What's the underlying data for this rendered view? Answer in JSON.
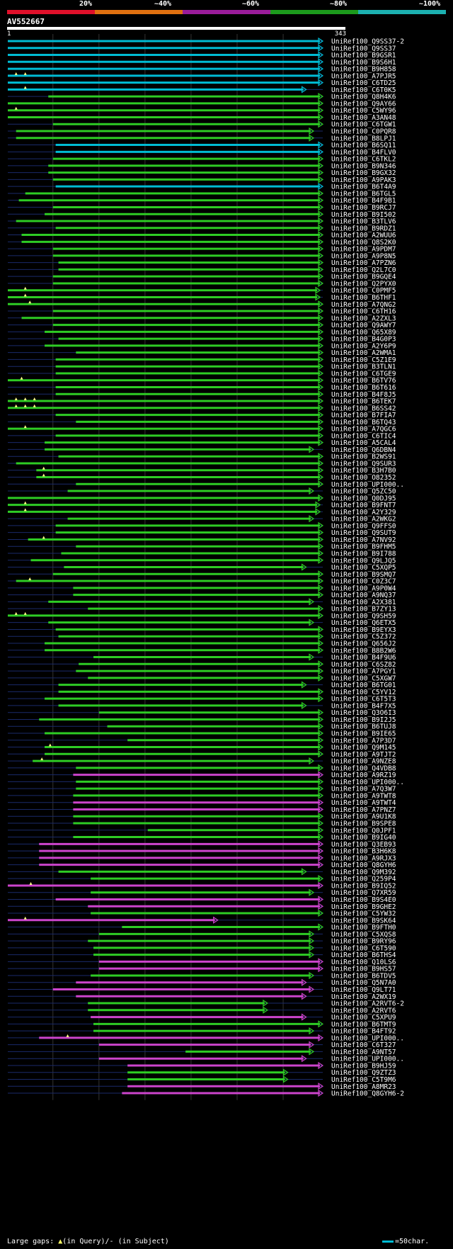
{
  "scale": {
    "labels": [
      "20%",
      "~40%",
      "~60%",
      "~80%",
      "~100%"
    ],
    "colors": [
      "#e0102a",
      "#e07010",
      "#9a1c9a",
      "#1c9a1c",
      "#1cb0b0"
    ]
  },
  "query": {
    "id": "AV552667",
    "length": 343,
    "start_label": "1",
    "end_label": "343"
  },
  "colors": {
    "cyan": "#00bcd4",
    "green": "#2ecc24",
    "magenta": "#cc44cc",
    "faint": "#1a2a6a",
    "gap": "#ffff88",
    "grid": "#333333"
  },
  "footer": {
    "large_gaps": "Large gaps:",
    "in_query": "(in Query)/",
    "in_subject": "- (in Subject)",
    "legend": "=50char."
  },
  "hits": [
    {
      "id": "UniRef100_Q9SS37-2",
      "start": 1,
      "end": 343,
      "color": "cyan",
      "gaps": []
    },
    {
      "id": "UniRef100_Q9SS37",
      "start": 1,
      "end": 343,
      "color": "cyan",
      "gaps": []
    },
    {
      "id": "UniRef100_B9GSR1",
      "start": 1,
      "end": 343,
      "color": "cyan",
      "gaps": []
    },
    {
      "id": "UniRef100_B9S6H1",
      "start": 1,
      "end": 343,
      "color": "cyan",
      "gaps": []
    },
    {
      "id": "UniRef100_B9H858",
      "start": 1,
      "end": 343,
      "color": "cyan",
      "gaps": []
    },
    {
      "id": "UniRef100_A7PJR5",
      "start": 1,
      "end": 343,
      "color": "cyan",
      "gaps": [
        10,
        20
      ]
    },
    {
      "id": "UniRef100_C6TD25",
      "start": 1,
      "end": 343,
      "color": "cyan",
      "gaps": []
    },
    {
      "id": "UniRef100_C6T0K5",
      "start": 1,
      "end": 325,
      "color": "cyan",
      "gaps": [
        20
      ]
    },
    {
      "id": "UniRef100_Q8H4K6",
      "start": 45,
      "end": 343,
      "color": "green",
      "gaps": []
    },
    {
      "id": "UniRef100_Q9AY66",
      "start": 1,
      "end": 343,
      "color": "green",
      "gaps": []
    },
    {
      "id": "UniRef100_C5WY96",
      "start": 1,
      "end": 343,
      "color": "green",
      "gaps": [
        10
      ]
    },
    {
      "id": "UniRef100_A3AN48",
      "start": 1,
      "end": 343,
      "color": "green",
      "gaps": []
    },
    {
      "id": "UniRef100_C6TGW1",
      "start": 50,
      "end": 343,
      "color": "green",
      "gaps": []
    },
    {
      "id": "UniRef100_C0PQR8",
      "start": 10,
      "end": 333,
      "color": "green",
      "gaps": []
    },
    {
      "id": "UniRef100_B8LPJ1",
      "start": 10,
      "end": 333,
      "color": "green",
      "gaps": []
    },
    {
      "id": "UniRef100_B6SQ11",
      "start": 53,
      "end": 343,
      "color": "cyan",
      "gaps": []
    },
    {
      "id": "UniRef100_B4FLV0",
      "start": 53,
      "end": 343,
      "color": "cyan",
      "gaps": []
    },
    {
      "id": "UniRef100_C6TKL2",
      "start": 50,
      "end": 343,
      "color": "green",
      "gaps": []
    },
    {
      "id": "UniRef100_B9N346",
      "start": 45,
      "end": 343,
      "color": "green",
      "gaps": []
    },
    {
      "id": "UniRef100_B9GX32",
      "start": 45,
      "end": 343,
      "color": "green",
      "gaps": []
    },
    {
      "id": "UniRef100_A9PAK3",
      "start": 50,
      "end": 343,
      "color": "green",
      "gaps": []
    },
    {
      "id": "UniRef100_B6T4A9",
      "start": 53,
      "end": 343,
      "color": "cyan",
      "gaps": []
    },
    {
      "id": "UniRef100_B6TGL5",
      "start": 20,
      "end": 343,
      "color": "green",
      "gaps": []
    },
    {
      "id": "UniRef100_B4F9B1",
      "start": 13,
      "end": 343,
      "color": "green",
      "gaps": []
    },
    {
      "id": "UniRef100_B9RCJ7",
      "start": 50,
      "end": 343,
      "color": "green",
      "gaps": []
    },
    {
      "id": "UniRef100_B9I502",
      "start": 41,
      "end": 343,
      "color": "green",
      "gaps": []
    },
    {
      "id": "UniRef100_B3TLV6",
      "start": 10,
      "end": 343,
      "color": "green",
      "gaps": []
    },
    {
      "id": "UniRef100_B9RDZ1",
      "start": 53,
      "end": 343,
      "color": "green",
      "gaps": []
    },
    {
      "id": "UniRef100_A2WUU6",
      "start": 16,
      "end": 343,
      "color": "green",
      "gaps": []
    },
    {
      "id": "UniRef100_Q8S2K0",
      "start": 16,
      "end": 343,
      "color": "green",
      "gaps": []
    },
    {
      "id": "UniRef100_A9PDM7",
      "start": 50,
      "end": 343,
      "color": "green",
      "gaps": []
    },
    {
      "id": "UniRef100_A9P8N5",
      "start": 50,
      "end": 343,
      "color": "green",
      "gaps": []
    },
    {
      "id": "UniRef100_A7PZN6",
      "start": 56,
      "end": 343,
      "color": "green",
      "gaps": []
    },
    {
      "id": "UniRef100_Q2L7C0",
      "start": 56,
      "end": 343,
      "color": "green",
      "gaps": []
    },
    {
      "id": "UniRef100_B9GQE4",
      "start": 50,
      "end": 343,
      "color": "green",
      "gaps": []
    },
    {
      "id": "UniRef100_Q2PYX0",
      "start": 50,
      "end": 343,
      "color": "green",
      "gaps": []
    },
    {
      "id": "UniRef100_C0PMF5",
      "start": 1,
      "end": 340,
      "color": "green",
      "gaps": [
        20
      ]
    },
    {
      "id": "UniRef100_B6THF1",
      "start": 1,
      "end": 340,
      "color": "green",
      "gaps": [
        20
      ]
    },
    {
      "id": "UniRef100_A7QNG2",
      "start": 1,
      "end": 343,
      "color": "green",
      "gaps": [
        25
      ]
    },
    {
      "id": "UniRef100_C6TH16",
      "start": 50,
      "end": 343,
      "color": "green",
      "gaps": []
    },
    {
      "id": "UniRef100_A2ZXL3",
      "start": 16,
      "end": 343,
      "color": "green",
      "gaps": []
    },
    {
      "id": "UniRef100_Q9AWY7",
      "start": 50,
      "end": 343,
      "color": "green",
      "gaps": []
    },
    {
      "id": "UniRef100_Q65X89",
      "start": 41,
      "end": 343,
      "color": "green",
      "gaps": []
    },
    {
      "id": "UniRef100_B4G0P3",
      "start": 56,
      "end": 343,
      "color": "green",
      "gaps": []
    },
    {
      "id": "UniRef100_A2Y6P9",
      "start": 41,
      "end": 343,
      "color": "green",
      "gaps": []
    },
    {
      "id": "UniRef100_A2WMA1",
      "start": 75,
      "end": 343,
      "color": "green",
      "gaps": []
    },
    {
      "id": "UniRef100_C5Z1E9",
      "start": 53,
      "end": 343,
      "color": "green",
      "gaps": []
    },
    {
      "id": "UniRef100_B3TLN1",
      "start": 53,
      "end": 343,
      "color": "green",
      "gaps": []
    },
    {
      "id": "UniRef100_C6TGE9",
      "start": 53,
      "end": 343,
      "color": "green",
      "gaps": []
    },
    {
      "id": "UniRef100_B6TV76",
      "start": 1,
      "end": 343,
      "color": "green",
      "gaps": [
        16
      ]
    },
    {
      "id": "UniRef100_B6T616",
      "start": 53,
      "end": 343,
      "color": "green",
      "gaps": []
    },
    {
      "id": "UniRef100_B4F8J5",
      "start": 53,
      "end": 343,
      "color": "green",
      "gaps": []
    },
    {
      "id": "UniRef100_B6TEK7",
      "start": 1,
      "end": 343,
      "color": "green",
      "gaps": [
        10,
        20,
        30
      ]
    },
    {
      "id": "UniRef100_B6SS42",
      "start": 1,
      "end": 343,
      "color": "green",
      "gaps": [
        10,
        20,
        30
      ]
    },
    {
      "id": "UniRef100_B7FIA7",
      "start": 53,
      "end": 343,
      "color": "green",
      "gaps": []
    },
    {
      "id": "UniRef100_B6TQ43",
      "start": 75,
      "end": 343,
      "color": "green",
      "gaps": []
    },
    {
      "id": "UniRef100_A7QGC6",
      "start": 1,
      "end": 343,
      "color": "green",
      "gaps": [
        20
      ]
    },
    {
      "id": "UniRef100_C6TIC4",
      "start": 53,
      "end": 343,
      "color": "green",
      "gaps": []
    },
    {
      "id": "UniRef100_A5CAL4",
      "start": 41,
      "end": 343,
      "color": "green",
      "gaps": []
    },
    {
      "id": "UniRef100_Q6DBN4",
      "start": 41,
      "end": 333,
      "color": "green",
      "gaps": []
    },
    {
      "id": "UniRef100_B2WS91",
      "start": 56,
      "end": 343,
      "color": "green",
      "gaps": []
    },
    {
      "id": "UniRef100_Q9SUR3",
      "start": 10,
      "end": 343,
      "color": "green",
      "gaps": []
    },
    {
      "id": "UniRef100_B3H7B0",
      "start": 32,
      "end": 343,
      "color": "green",
      "gaps": [
        40
      ]
    },
    {
      "id": "UniRef100_O82352",
      "start": 32,
      "end": 343,
      "color": "green",
      "gaps": [
        40
      ]
    },
    {
      "id": "UniRef100_UPI000..",
      "start": 75,
      "end": 343,
      "color": "green",
      "gaps": []
    },
    {
      "id": "UniRef100_Q5ZC50",
      "start": 66,
      "end": 333,
      "color": "green",
      "gaps": []
    },
    {
      "id": "UniRef100_Q0DJ95",
      "start": 1,
      "end": 343,
      "color": "green",
      "gaps": []
    },
    {
      "id": "UniRef100_B9FNT7",
      "start": 1,
      "end": 340,
      "color": "green",
      "gaps": [
        20
      ]
    },
    {
      "id": "UniRef100_A2Y329",
      "start": 1,
      "end": 340,
      "color": "green",
      "gaps": [
        20
      ]
    },
    {
      "id": "UniRef100_A2WKG2",
      "start": 66,
      "end": 333,
      "color": "green",
      "gaps": []
    },
    {
      "id": "UniRef100_Q9FFS0",
      "start": 53,
      "end": 343,
      "color": "green",
      "gaps": []
    },
    {
      "id": "UniRef100_Q9SUT9",
      "start": 53,
      "end": 343,
      "color": "green",
      "gaps": []
    },
    {
      "id": "UniRef100_A7NV92",
      "start": 23,
      "end": 343,
      "color": "green",
      "gaps": [
        40
      ]
    },
    {
      "id": "UniRef100_B9FHM5",
      "start": 75,
      "end": 343,
      "color": "green",
      "gaps": []
    },
    {
      "id": "UniRef100_B9I788",
      "start": 59,
      "end": 343,
      "color": "green",
      "gaps": []
    },
    {
      "id": "UniRef100_Q9LJQ5",
      "start": 26,
      "end": 343,
      "color": "green",
      "gaps": []
    },
    {
      "id": "UniRef100_C5XQP5",
      "start": 62,
      "end": 325,
      "color": "green",
      "gaps": []
    },
    {
      "id": "UniRef100_B9SMQ7",
      "start": 50,
      "end": 343,
      "color": "green",
      "gaps": []
    },
    {
      "id": "UniRef100_C0Z3C7",
      "start": 10,
      "end": 343,
      "color": "green",
      "gaps": [
        25
      ]
    },
    {
      "id": "UniRef100_A9P0W4",
      "start": 72,
      "end": 343,
      "color": "green",
      "gaps": []
    },
    {
      "id": "UniRef100_A9NQ37",
      "start": 72,
      "end": 343,
      "color": "green",
      "gaps": []
    },
    {
      "id": "UniRef100_A2X381",
      "start": 45,
      "end": 333,
      "color": "green",
      "gaps": []
    },
    {
      "id": "UniRef100_B7ZY13",
      "start": 88,
      "end": 343,
      "color": "green",
      "gaps": []
    },
    {
      "id": "UniRef100_Q9SH59",
      "start": 1,
      "end": 343,
      "color": "green",
      "gaps": [
        10,
        20
      ]
    },
    {
      "id": "UniRef100_Q6ETX5",
      "start": 45,
      "end": 333,
      "color": "green",
      "gaps": []
    },
    {
      "id": "UniRef100_B9EYX3",
      "start": 53,
      "end": 343,
      "color": "green",
      "gaps": []
    },
    {
      "id": "UniRef100_C5Z372",
      "start": 56,
      "end": 343,
      "color": "green",
      "gaps": []
    },
    {
      "id": "UniRef100_Q656J2",
      "start": 41,
      "end": 343,
      "color": "green",
      "gaps": []
    },
    {
      "id": "UniRef100_B8B2W6",
      "start": 41,
      "end": 343,
      "color": "green",
      "gaps": []
    },
    {
      "id": "UniRef100_B4F9U6",
      "start": 94,
      "end": 333,
      "color": "green",
      "gaps": []
    },
    {
      "id": "UniRef100_C6SZ82",
      "start": 78,
      "end": 343,
      "color": "green",
      "gaps": []
    },
    {
      "id": "UniRef100_A7PGY1",
      "start": 75,
      "end": 343,
      "color": "green",
      "gaps": []
    },
    {
      "id": "UniRef100_C5XGW7",
      "start": 88,
      "end": 343,
      "color": "green",
      "gaps": []
    },
    {
      "id": "UniRef100_B6TG01",
      "start": 56,
      "end": 325,
      "color": "green",
      "gaps": []
    },
    {
      "id": "UniRef100_C5YV12",
      "start": 56,
      "end": 343,
      "color": "green",
      "gaps": []
    },
    {
      "id": "UniRef100_C6T5T3",
      "start": 41,
      "end": 343,
      "color": "green",
      "gaps": []
    },
    {
      "id": "UniRef100_B4F7X5",
      "start": 56,
      "end": 325,
      "color": "green",
      "gaps": []
    },
    {
      "id": "UniRef100_Q3O6I3",
      "start": 100,
      "end": 343,
      "color": "green",
      "gaps": []
    },
    {
      "id": "UniRef100_B9I2J5",
      "start": 35,
      "end": 343,
      "color": "green",
      "gaps": []
    },
    {
      "id": "UniRef100_B6TUJ8",
      "start": 109,
      "end": 343,
      "color": "green",
      "gaps": []
    },
    {
      "id": "UniRef100_B9IE65",
      "start": 41,
      "end": 343,
      "color": "green",
      "gaps": []
    },
    {
      "id": "UniRef100_A7P3D7",
      "start": 131,
      "end": 343,
      "color": "green",
      "gaps": []
    },
    {
      "id": "UniRef100_Q9M145",
      "start": 41,
      "end": 343,
      "color": "green",
      "gaps": [
        47
      ]
    },
    {
      "id": "UniRef100_A9TJT2",
      "start": 41,
      "end": 343,
      "color": "green",
      "gaps": []
    },
    {
      "id": "UniRef100_A9NZE8",
      "start": 28,
      "end": 333,
      "color": "green",
      "gaps": [
        38
      ]
    },
    {
      "id": "UniRef100_Q4VDB8",
      "start": 75,
      "end": 343,
      "color": "green",
      "gaps": []
    },
    {
      "id": "UniRef100_A9RZ19",
      "start": 72,
      "end": 343,
      "color": "magenta",
      "gaps": []
    },
    {
      "id": "UniRef100_UPI000..",
      "start": 75,
      "end": 343,
      "color": "green",
      "gaps": []
    },
    {
      "id": "UniRef100_A7Q3W7",
      "start": 75,
      "end": 343,
      "color": "green",
      "gaps": []
    },
    {
      "id": "UniRef100_A9TWT8",
      "start": 72,
      "end": 343,
      "color": "green",
      "gaps": []
    },
    {
      "id": "UniRef100_A9TWT4",
      "start": 72,
      "end": 343,
      "color": "magenta",
      "gaps": []
    },
    {
      "id": "UniRef100_A7PNZ7",
      "start": 72,
      "end": 343,
      "color": "magenta",
      "gaps": []
    },
    {
      "id": "UniRef100_A9U1K8",
      "start": 72,
      "end": 343,
      "color": "green",
      "gaps": []
    },
    {
      "id": "UniRef100_B9SPE8",
      "start": 72,
      "end": 343,
      "color": "green",
      "gaps": []
    },
    {
      "id": "UniRef100_Q0JPF1",
      "start": 153,
      "end": 343,
      "color": "green",
      "gaps": []
    },
    {
      "id": "UniRef100_B9IG40",
      "start": 72,
      "end": 343,
      "color": "green",
      "gaps": []
    },
    {
      "id": "UniRef100_Q3EB93",
      "start": 35,
      "end": 343,
      "color": "magenta",
      "gaps": []
    },
    {
      "id": "UniRef100_B3H6K8",
      "start": 35,
      "end": 343,
      "color": "magenta",
      "gaps": []
    },
    {
      "id": "UniRef100_A9RJX3",
      "start": 35,
      "end": 343,
      "color": "magenta",
      "gaps": []
    },
    {
      "id": "UniRef100_Q8GYH6",
      "start": 35,
      "end": 343,
      "color": "magenta",
      "gaps": []
    },
    {
      "id": "UniRef100_Q9M392",
      "start": 56,
      "end": 325,
      "color": "green",
      "gaps": []
    },
    {
      "id": "UniRef100_Q259P4",
      "start": 91,
      "end": 343,
      "color": "green",
      "gaps": []
    },
    {
      "id": "UniRef100_B9IQ52",
      "start": 1,
      "end": 343,
      "color": "magenta",
      "gaps": [
        26
      ]
    },
    {
      "id": "UniRef100_Q7XR59",
      "start": 91,
      "end": 333,
      "color": "green",
      "gaps": []
    },
    {
      "id": "UniRef100_B9S4E0",
      "start": 53,
      "end": 343,
      "color": "magenta",
      "gaps": []
    },
    {
      "id": "UniRef100_B9GHE2",
      "start": 88,
      "end": 343,
      "color": "magenta",
      "gaps": []
    },
    {
      "id": "UniRef100_C5YW32",
      "start": 91,
      "end": 343,
      "color": "green",
      "gaps": []
    },
    {
      "id": "UniRef100_B9SK64",
      "start": 1,
      "end": 229,
      "color": "magenta",
      "gaps": [
        20
      ]
    },
    {
      "id": "UniRef100_B9FTH0",
      "start": 125,
      "end": 343,
      "color": "green",
      "gaps": []
    },
    {
      "id": "UniRef100_C5XQS8",
      "start": 100,
      "end": 333,
      "color": "green",
      "gaps": []
    },
    {
      "id": "UniRef100_B9RY96",
      "start": 88,
      "end": 333,
      "color": "green",
      "gaps": []
    },
    {
      "id": "UniRef100_C6T590",
      "start": 94,
      "end": 333,
      "color": "green",
      "gaps": []
    },
    {
      "id": "UniRef100_B6THS4",
      "start": 94,
      "end": 333,
      "color": "green",
      "gaps": []
    },
    {
      "id": "UniRef100_Q10LS6",
      "start": 100,
      "end": 343,
      "color": "magenta",
      "gaps": []
    },
    {
      "id": "UniRef100_B9HS57",
      "start": 100,
      "end": 343,
      "color": "magenta",
      "gaps": []
    },
    {
      "id": "UniRef100_B6TDV5",
      "start": 91,
      "end": 333,
      "color": "green",
      "gaps": []
    },
    {
      "id": "UniRef100_Q5N7A0",
      "start": 75,
      "end": 325,
      "color": "magenta",
      "gaps": []
    },
    {
      "id": "UniRef100_Q9LT71",
      "start": 50,
      "end": 333,
      "color": "magenta",
      "gaps": []
    },
    {
      "id": "UniRef100_A2WX19",
      "start": 75,
      "end": 325,
      "color": "magenta",
      "gaps": []
    },
    {
      "id": "UniRef100_A2RVT6-2",
      "start": 88,
      "end": 283,
      "color": "green",
      "gaps": []
    },
    {
      "id": "UniRef100_A2RVT6",
      "start": 88,
      "end": 283,
      "color": "green",
      "gaps": []
    },
    {
      "id": "UniRef100_C5XPU9",
      "start": 91,
      "end": 325,
      "color": "magenta",
      "gaps": []
    },
    {
      "id": "UniRef100_B6TMT9",
      "start": 94,
      "end": 343,
      "color": "green",
      "gaps": []
    },
    {
      "id": "UniRef100_B4FT92",
      "start": 94,
      "end": 333,
      "color": "green",
      "gaps": []
    },
    {
      "id": "UniRef100_UPI000..",
      "start": 35,
      "end": 343,
      "color": "magenta",
      "gaps": [
        66
      ]
    },
    {
      "id": "UniRef100_C6T327",
      "start": 100,
      "end": 333,
      "color": "magenta",
      "gaps": []
    },
    {
      "id": "UniRef100_A9NT57",
      "start": 194,
      "end": 333,
      "color": "green",
      "gaps": []
    },
    {
      "id": "UniRef100_UPI000..",
      "start": 100,
      "end": 325,
      "color": "magenta",
      "gaps": []
    },
    {
      "id": "UniRef100_B9HJ59",
      "start": 131,
      "end": 343,
      "color": "magenta",
      "gaps": []
    },
    {
      "id": "UniRef100_Q9ZTZ3",
      "start": 131,
      "end": 305,
      "color": "green",
      "gaps": []
    },
    {
      "id": "UniRef100_C5T9M6",
      "start": 131,
      "end": 305,
      "color": "green",
      "gaps": []
    },
    {
      "id": "UniRef100_A8MR23",
      "start": 131,
      "end": 343,
      "color": "magenta",
      "gaps": []
    },
    {
      "id": "UniRef100_Q8GYH6-2",
      "start": 125,
      "end": 343,
      "color": "magenta",
      "gaps": []
    }
  ]
}
